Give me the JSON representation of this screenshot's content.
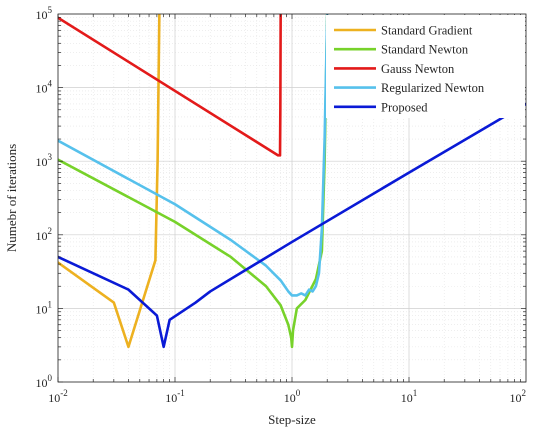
{
  "chart_data": {
    "type": "line",
    "xscale": "log",
    "yscale": "log",
    "xlim": [
      0.01,
      100
    ],
    "ylim": [
      1,
      100000
    ],
    "xlabel": "Step-size",
    "ylabel": "Numebr of iterations",
    "xticks": [
      {
        "value": 0.01,
        "base": "10",
        "exp": "-2"
      },
      {
        "value": 0.1,
        "base": "10",
        "exp": "-1"
      },
      {
        "value": 1,
        "base": "10",
        "exp": "0"
      },
      {
        "value": 10,
        "base": "10",
        "exp": "1"
      },
      {
        "value": 100,
        "base": "10",
        "exp": "2"
      }
    ],
    "yticks": [
      {
        "value": 1,
        "base": "10",
        "exp": "0"
      },
      {
        "value": 10,
        "base": "10",
        "exp": "1"
      },
      {
        "value": 100,
        "base": "10",
        "exp": "2"
      },
      {
        "value": 1000,
        "base": "10",
        "exp": "3"
      },
      {
        "value": 10000,
        "base": "10",
        "exp": "4"
      },
      {
        "value": 100000,
        "base": "10",
        "exp": "5"
      }
    ],
    "grid": true,
    "minor_grid": true,
    "legend_position": "top-right",
    "series": [
      {
        "name": "Standard Gradient",
        "color": "#EDB120",
        "x": [
          0.01,
          0.03,
          0.04,
          0.058,
          0.068,
          0.071,
          0.0735
        ],
        "y": [
          42,
          12,
          3,
          20,
          45,
          1000,
          100000
        ]
      },
      {
        "name": "Standard Newton",
        "color": "#77D22A",
        "x": [
          0.01,
          0.1,
          0.3,
          0.6,
          0.8,
          0.93,
          0.985,
          1.0,
          1.02,
          1.1,
          1.3,
          1.6,
          1.8,
          1.9,
          2.0
        ],
        "y": [
          1050,
          150,
          50,
          20,
          11,
          6,
          4,
          3,
          5,
          10,
          13,
          25,
          60,
          1000,
          100000
        ]
      },
      {
        "name": "Gauss Newton",
        "color": "#E31A1A",
        "x": [
          0.01,
          0.76,
          0.79,
          0.795,
          0.8
        ],
        "y": [
          89000,
          1200,
          1200,
          5000,
          100000
        ]
      },
      {
        "name": "Regularized Newton",
        "color": "#56C1EC",
        "x": [
          0.01,
          0.1,
          0.3,
          0.6,
          0.8,
          0.93,
          1.0,
          1.1,
          1.2,
          1.3,
          1.4,
          1.5,
          1.6,
          1.7,
          1.8,
          1.9,
          2.0
        ],
        "y": [
          1900,
          260,
          85,
          38,
          24,
          17,
          15,
          15,
          16,
          15,
          18,
          17,
          20,
          30,
          120,
          2000,
          100000
        ]
      },
      {
        "name": "Proposed",
        "color": "#0A1AD6",
        "x": [
          0.01,
          0.04,
          0.07,
          0.08,
          0.09,
          0.15,
          0.2,
          1.0,
          10,
          100
        ],
        "y": [
          50,
          18,
          8,
          3,
          7,
          12,
          17,
          80,
          700,
          6000
        ]
      }
    ]
  }
}
